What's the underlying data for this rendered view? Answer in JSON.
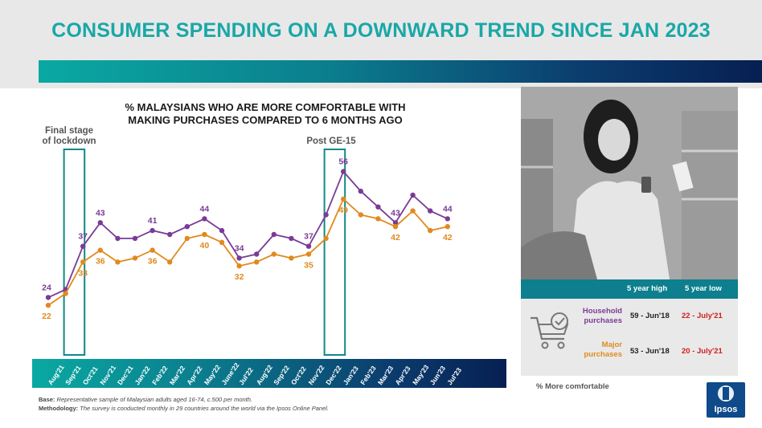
{
  "title": "CONSUMER SPENDING ON A DOWNWARD TREND SINCE JAN 2023",
  "colors": {
    "title_teal": "#1aa7a7",
    "household": "#7a3b96",
    "major": "#e08a1e",
    "highlight_box": "#0e8a86",
    "low_red": "#d21e1e"
  },
  "callouts": {
    "lockdown_line1": "Final stage",
    "lockdown_line2": "of lockdown",
    "post_ge": "Post GE-15"
  },
  "chart_data": {
    "type": "line",
    "title_line1": "% MALAYSIANS WHO ARE MORE COMFORTABLE WITH",
    "title_line2": "MAKING PURCHASES COMPARED TO 6 MONTHS AGO",
    "categories": [
      "Aug'21",
      "Sep'21",
      "Oct'21",
      "Nov'21",
      "Dec'21",
      "Jan'22",
      "Feb'22",
      "Mar'22",
      "Apr'22",
      "May'22",
      "June'22",
      "Jul'22",
      "Aug'22",
      "Sep'22",
      "Oct'22",
      "Nov'22",
      "Dec'22",
      "Jan'23",
      "Feb'23",
      "Mar'23",
      "Apr'23",
      "May'23",
      "Jun'23",
      "Jul'23"
    ],
    "series": [
      {
        "name": "Household purchases",
        "color": "#7a3b96",
        "values": [
          24,
          26,
          37,
          43,
          39,
          39,
          41,
          40,
          42,
          44,
          41,
          34,
          35,
          40,
          39,
          37,
          45,
          56,
          51,
          47,
          43,
          50,
          46,
          44
        ]
      },
      {
        "name": "Major purchases",
        "color": "#e08a1e",
        "values": [
          22,
          25,
          33,
          36,
          33,
          34,
          36,
          33,
          39,
          40,
          38,
          32,
          33,
          35,
          34,
          35,
          39,
          49,
          45,
          44,
          42,
          46,
          41,
          42
        ]
      }
    ],
    "data_labels": {
      "household": [
        {
          "i": 0,
          "text": "24"
        },
        {
          "i": 2,
          "text": "37"
        },
        {
          "i": 3,
          "text": "43"
        },
        {
          "i": 6,
          "text": "41"
        },
        {
          "i": 9,
          "text": "44"
        },
        {
          "i": 11,
          "text": "34"
        },
        {
          "i": 15,
          "text": "37"
        },
        {
          "i": 17,
          "text": "56"
        },
        {
          "i": 20,
          "text": "43"
        },
        {
          "i": 23,
          "text": "44"
        }
      ],
      "major": [
        {
          "i": 0,
          "text": "22"
        },
        {
          "i": 2,
          "text": "33"
        },
        {
          "i": 3,
          "text": "36"
        },
        {
          "i": 6,
          "text": "36"
        },
        {
          "i": 9,
          "text": "40"
        },
        {
          "i": 11,
          "text": "32"
        },
        {
          "i": 15,
          "text": "35"
        },
        {
          "i": 17,
          "text": "49"
        },
        {
          "i": 20,
          "text": "42"
        },
        {
          "i": 23,
          "text": "42"
        }
      ]
    },
    "highlights": [
      {
        "from_index": 1,
        "to_index": 2,
        "label": "Final stage of lockdown"
      },
      {
        "from_index": 16,
        "to_index": 17,
        "label": "Post GE-15"
      }
    ]
  },
  "table": {
    "col_high": "5 year high",
    "col_low": "5 year low",
    "rows": [
      {
        "label1": "Household",
        "label2": "purchases",
        "high": "59 - Jun'18",
        "low": "22 - July'21"
      },
      {
        "label1": "Major",
        "label2": "purchases",
        "high": "53 - Jun'18",
        "low": "20 - July'21"
      }
    ]
  },
  "more_comfortable": "% More comfortable",
  "footer": {
    "base_label": "Base:",
    "base_text": " Representative sample of Malaysian adults aged 16-74, c.500 per month.",
    "method_label": "Methodology:",
    "method_text": " The survey is conducted monthly in 29 countries around the world via the Ipsos Online Panel."
  },
  "logo_text": "Ipsos",
  "icons": {
    "cart": "cart-check-icon",
    "logo": "ipsos-logo"
  }
}
